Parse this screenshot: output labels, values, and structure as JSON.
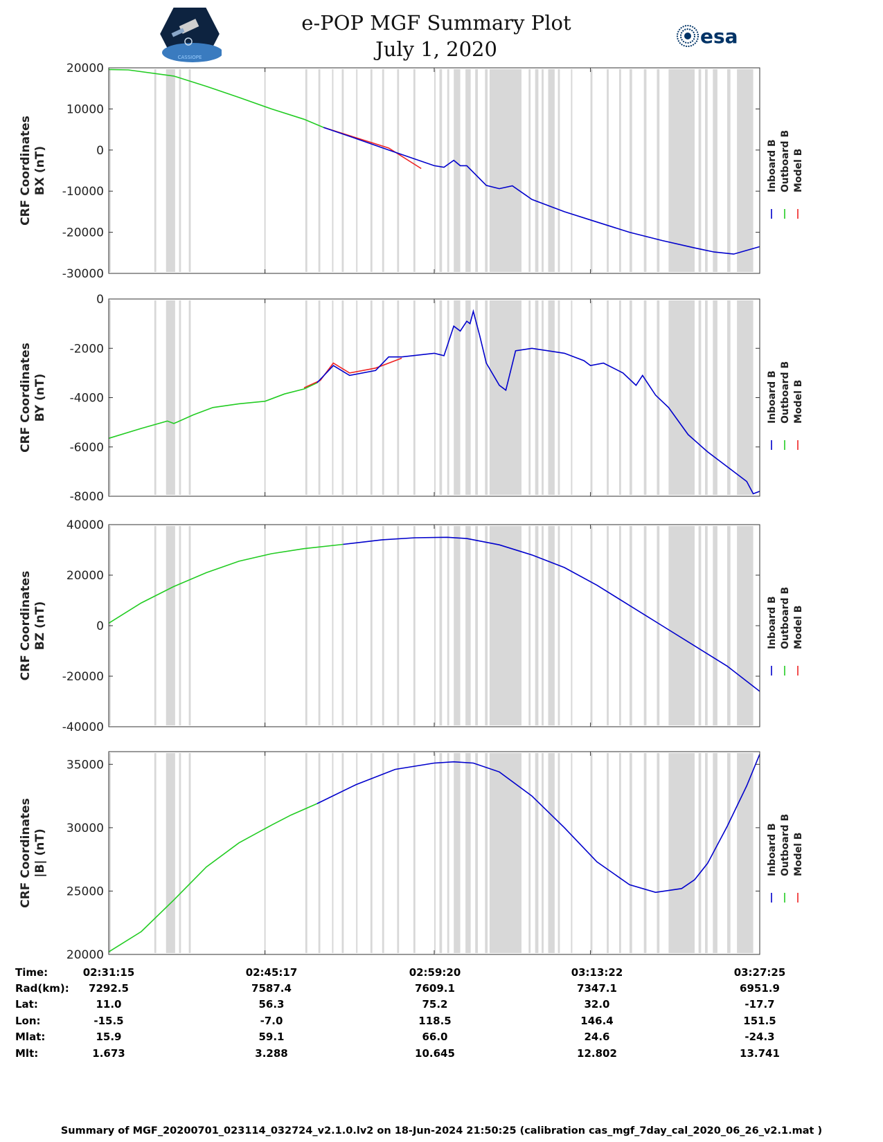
{
  "header": {
    "title_line1": "e-POP MGF Summary Plot",
    "title_line2": "July 1, 2020",
    "left_logo_text": "CASSIOPE",
    "right_logo_text": "esa"
  },
  "legend": {
    "inboard": "Inboard B",
    "outboard": "Outboard B",
    "model": "Model B"
  },
  "colors": {
    "inboard": "#0000cc",
    "outboard": "#22cc22",
    "model": "#ee2222",
    "shade": "#d8d8d8"
  },
  "chart_data": [
    {
      "type": "line",
      "ylabel_line1": "CRF Coordinates",
      "ylabel_line2": "BX (nT)",
      "ylim": [
        -30000,
        20000
      ],
      "yticks": [
        20000,
        10000,
        0,
        -10000,
        -20000,
        -30000
      ],
      "xlim": [
        0,
        1
      ],
      "series": [
        {
          "name": "Outboard B",
          "color": "#22cc22",
          "x": [
            0,
            0.03,
            0.1,
            0.15,
            0.2,
            0.25,
            0.3,
            0.33
          ],
          "y": [
            19600,
            19500,
            18000,
            15500,
            12800,
            10000,
            7500,
            5500
          ]
        },
        {
          "name": "Model B",
          "color": "#ee2222",
          "x": [
            0.33,
            0.38,
            0.43,
            0.48
          ],
          "y": [
            5500,
            3000,
            500,
            -4500
          ]
        },
        {
          "name": "Inboard B",
          "color": "#0000cc",
          "x": [
            0.33,
            0.38,
            0.43,
            0.5,
            0.515,
            0.53,
            0.54,
            0.55,
            0.58,
            0.6,
            0.62,
            0.65,
            0.7,
            0.75,
            0.8,
            0.85,
            0.9,
            0.93,
            0.96,
            1.0
          ],
          "y": [
            5500,
            2800,
            0,
            -3800,
            -4200,
            -2500,
            -3800,
            -3800,
            -8600,
            -9400,
            -8700,
            -12000,
            -15000,
            -17500,
            -20000,
            -22000,
            -23800,
            -24800,
            -25300,
            -23500
          ]
        }
      ]
    },
    {
      "type": "line",
      "ylabel_line1": "CRF Coordinates",
      "ylabel_line2": "BY (nT)",
      "ylim": [
        -8000,
        0
      ],
      "yticks": [
        0,
        -2000,
        -4000,
        -6000,
        -8000
      ],
      "xlim": [
        0,
        1
      ],
      "series": [
        {
          "name": "Outboard B",
          "color": "#22cc22",
          "x": [
            0,
            0.05,
            0.09,
            0.1,
            0.13,
            0.16,
            0.2,
            0.24,
            0.27,
            0.3,
            0.32
          ],
          "y": [
            -5650,
            -5250,
            -4950,
            -5050,
            -4700,
            -4400,
            -4250,
            -4150,
            -3850,
            -3650,
            -3400
          ]
        },
        {
          "name": "Model B",
          "color": "#ee2222",
          "x": [
            0.3,
            0.325,
            0.345,
            0.37,
            0.41,
            0.45
          ],
          "y": [
            -3600,
            -3300,
            -2600,
            -3000,
            -2800,
            -2400
          ]
        },
        {
          "name": "Inboard B",
          "color": "#0000cc",
          "x": [
            0.32,
            0.345,
            0.37,
            0.41,
            0.43,
            0.45,
            0.5,
            0.515,
            0.52,
            0.53,
            0.54,
            0.55,
            0.555,
            0.56,
            0.57,
            0.58,
            0.6,
            0.61,
            0.625,
            0.65,
            0.7,
            0.73,
            0.74,
            0.76,
            0.79,
            0.81,
            0.82,
            0.83,
            0.84,
            0.86,
            0.89,
            0.92,
            0.95,
            0.97,
            0.98,
            0.99,
            1.0
          ],
          "y": [
            -3400,
            -2700,
            -3100,
            -2900,
            -2350,
            -2350,
            -2200,
            -2300,
            -1900,
            -1100,
            -1300,
            -900,
            -1000,
            -500,
            -1500,
            -2600,
            -3500,
            -3700,
            -2100,
            -2000,
            -2200,
            -2500,
            -2700,
            -2600,
            -3000,
            -3500,
            -3100,
            -3500,
            -3900,
            -4400,
            -5500,
            -6200,
            -6800,
            -7200,
            -7400,
            -7900,
            -7800
          ]
        }
      ]
    },
    {
      "type": "line",
      "ylabel_line1": "CRF Coordinates",
      "ylabel_line2": "BZ (nT)",
      "ylim": [
        -40000,
        40000
      ],
      "yticks": [
        40000,
        20000,
        0,
        -20000,
        -40000
      ],
      "xlim": [
        0,
        1
      ],
      "series": [
        {
          "name": "Outboard B",
          "color": "#22cc22",
          "x": [
            0,
            0.05,
            0.1,
            0.15,
            0.2,
            0.25,
            0.3,
            0.36
          ],
          "y": [
            1000,
            9000,
            15500,
            21000,
            25500,
            28500,
            30500,
            32200
          ]
        },
        {
          "name": "Inboard B",
          "color": "#0000cc",
          "x": [
            0.36,
            0.42,
            0.47,
            0.52,
            0.55,
            0.6,
            0.65,
            0.7,
            0.75,
            0.8,
            0.85,
            0.9,
            0.95,
            1.0
          ],
          "y": [
            32200,
            34000,
            34800,
            35000,
            34500,
            32000,
            28000,
            23000,
            16000,
            8000,
            0,
            -8000,
            -16000,
            -26000
          ]
        }
      ]
    },
    {
      "type": "line",
      "ylabel_line1": "CRF Coordinates",
      "ylabel_line2": "|B| (nT)",
      "ylim": [
        20000,
        36000
      ],
      "yticks": [
        35000,
        30000,
        25000,
        20000
      ],
      "xlim": [
        0,
        1
      ],
      "series": [
        {
          "name": "Outboard B",
          "color": "#22cc22",
          "x": [
            0,
            0.05,
            0.1,
            0.15,
            0.2,
            0.25,
            0.28,
            0.32
          ],
          "y": [
            20200,
            21800,
            24300,
            26900,
            28800,
            30200,
            31000,
            31900
          ]
        },
        {
          "name": "Inboard B",
          "color": "#0000cc",
          "x": [
            0.32,
            0.38,
            0.44,
            0.5,
            0.53,
            0.56,
            0.6,
            0.65,
            0.7,
            0.75,
            0.8,
            0.84,
            0.88,
            0.9,
            0.92,
            0.95,
            0.98,
            1.0
          ],
          "y": [
            31900,
            33400,
            34600,
            35100,
            35200,
            35100,
            34400,
            32500,
            30000,
            27300,
            25500,
            24900,
            25200,
            25900,
            27200,
            30100,
            33300,
            35800
          ]
        }
      ]
    }
  ],
  "shade_bands": [
    [
      0.0,
      0.003
    ],
    [
      0.07,
      0.073
    ],
    [
      0.088,
      0.102
    ],
    [
      0.108,
      0.111
    ],
    [
      0.123,
      0.126
    ],
    [
      0.302,
      0.305
    ],
    [
      0.322,
      0.325
    ],
    [
      0.343,
      0.345
    ],
    [
      0.358,
      0.361
    ],
    [
      0.38,
      0.382
    ],
    [
      0.402,
      0.405
    ],
    [
      0.42,
      0.423
    ],
    [
      0.443,
      0.446
    ],
    [
      0.468,
      0.471
    ],
    [
      0.5,
      0.502
    ],
    [
      0.508,
      0.512
    ],
    [
      0.52,
      0.523
    ],
    [
      0.53,
      0.54
    ],
    [
      0.548,
      0.556
    ],
    [
      0.563,
      0.567
    ],
    [
      0.578,
      0.582
    ],
    [
      0.585,
      0.634
    ],
    [
      0.645,
      0.648
    ],
    [
      0.655,
      0.66
    ],
    [
      0.665,
      0.668
    ],
    [
      0.675,
      0.685
    ],
    [
      0.69,
      0.693
    ],
    [
      0.71,
      0.712
    ],
    [
      0.74,
      0.743
    ],
    [
      0.765,
      0.768
    ],
    [
      0.784,
      0.787
    ],
    [
      0.8,
      0.804
    ],
    [
      0.822,
      0.826
    ],
    [
      0.842,
      0.846
    ],
    [
      0.86,
      0.9
    ],
    [
      0.906,
      0.91
    ],
    [
      0.916,
      0.92
    ],
    [
      0.928,
      0.935
    ],
    [
      0.95,
      0.955
    ],
    [
      0.965,
      0.99
    ]
  ],
  "x_ticks": [
    0,
    0.24,
    0.5,
    0.74,
    1.0
  ],
  "info_table": {
    "labels": [
      "Time:",
      "Rad(km):",
      "Lat:",
      "Lon:",
      "Mlat:",
      "Mlt:"
    ],
    "columns": [
      [
        "02:31:15",
        "7292.5",
        "11.0",
        "-15.5",
        "15.9",
        "1.673"
      ],
      [
        "02:45:17",
        "7587.4",
        "56.3",
        "-7.0",
        "59.1",
        "3.288"
      ],
      [
        "02:59:20",
        "7609.1",
        "75.2",
        "118.5",
        "66.0",
        "10.645"
      ],
      [
        "03:13:22",
        "7347.1",
        "32.0",
        "146.4",
        "24.6",
        "12.802"
      ],
      [
        "03:27:25",
        "6951.9",
        "-17.7",
        "151.5",
        "-24.3",
        "13.741"
      ]
    ]
  },
  "footer": "Summary of MGF_20200701_023114_032724_v2.1.0.lv2 on 18-Jun-2024 21:50:25 (calibration cas_mgf_7day_cal_2020_06_26_v2.1.mat )"
}
